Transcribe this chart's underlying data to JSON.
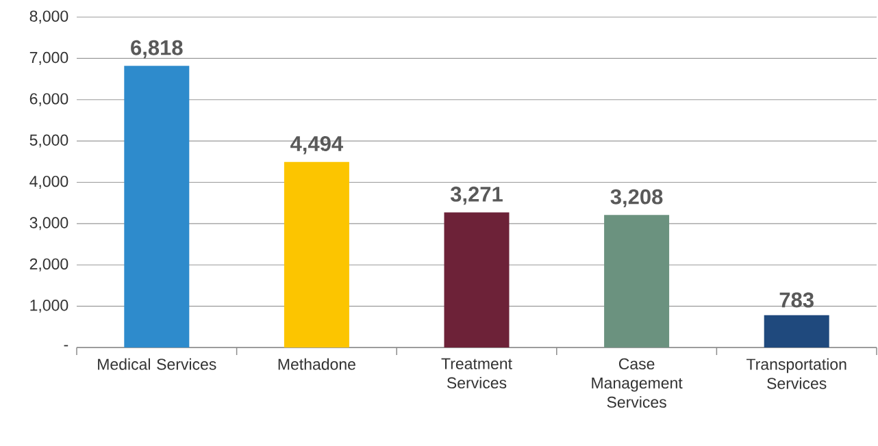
{
  "chart_data": {
    "type": "bar",
    "categories": [
      "Medical Services",
      "Methadone",
      "Treatment Services",
      "Case Management Services",
      "Transportation Services"
    ],
    "values": [
      6818,
      4494,
      3271,
      3208,
      783
    ],
    "colors": [
      "#2e8bcc",
      "#fcc500",
      "#6d2238",
      "#6b927f",
      "#1f497d"
    ],
    "value_labels": [
      "6,818",
      "4,494",
      "3,271",
      "3,208",
      "783"
    ],
    "ylim": [
      0,
      8000
    ],
    "yticks": [
      {
        "value": 0,
        "label": "-"
      },
      {
        "value": 1000,
        "label": "1,000"
      },
      {
        "value": 2000,
        "label": "2,000"
      },
      {
        "value": 3000,
        "label": "3,000"
      },
      {
        "value": 4000,
        "label": "4,000"
      },
      {
        "value": 5000,
        "label": "5,000"
      },
      {
        "value": 6000,
        "label": "6,000"
      },
      {
        "value": 7000,
        "label": "7,000"
      },
      {
        "value": 8000,
        "label": "8,000"
      }
    ],
    "grid": "y"
  }
}
